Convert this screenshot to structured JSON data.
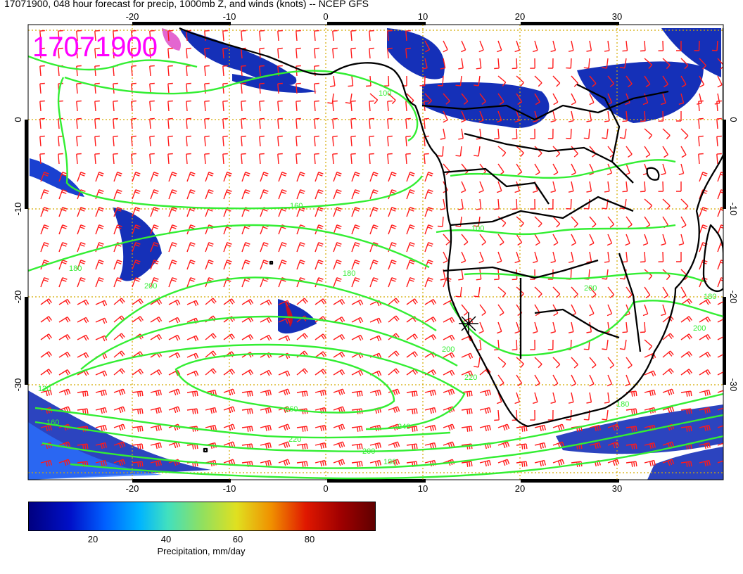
{
  "title": "17071900, 048 hour forecast for precip, 1000mb Z, and winds (knots) -- NCEP GFS",
  "stamp": "17071900",
  "map": {
    "lon_range": [
      -30,
      40
    ],
    "lat_range": [
      -40,
      10
    ],
    "lon_ticks": [
      "-20",
      "-10",
      "0",
      "10",
      "20",
      "30"
    ],
    "lat_ticks": [
      "0",
      "-10",
      "-20",
      "-30"
    ],
    "contour_labels": [
      "160",
      "180",
      "200",
      "220",
      "240",
      "260",
      "120",
      "100"
    ],
    "colors": {
      "contour": "#33ee33",
      "barb": "#ff1a1a",
      "coast": "#000000",
      "grid": "#d4aa00",
      "stamp": "#ff00ff",
      "precip_low": "#000080",
      "precip_mid": "#2060ff"
    }
  },
  "colorbar": {
    "labels": [
      "20",
      "40",
      "60",
      "80"
    ],
    "range": [
      0,
      100
    ],
    "title": "Precipitation, mm/day"
  }
}
